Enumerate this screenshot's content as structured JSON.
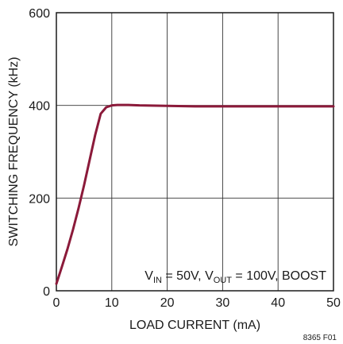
{
  "chart_data": {
    "type": "line",
    "xlabel": "LOAD CURRENT (mA)",
    "ylabel": "SWITCHING FREQUENCY (kHz)",
    "xlim": [
      0,
      50
    ],
    "ylim": [
      0,
      600
    ],
    "x_ticks": [
      "0",
      "10",
      "20",
      "30",
      "40",
      "50"
    ],
    "y_ticks": [
      "0",
      "200",
      "400",
      "600"
    ],
    "grid": true,
    "line_color": "#8b1a3a",
    "annotation": {
      "vin_label": "V",
      "vin_sub": "IN",
      "vin_text": " = 50V, V",
      "vout_sub": "OUT",
      "vout_text": " = 100V, BOOST"
    },
    "figure_id": "8365 F01",
    "series": [
      {
        "x": [
          0,
          1,
          2,
          3,
          4,
          5,
          6,
          7,
          8,
          9,
          10,
          11,
          12,
          13,
          15,
          20,
          25,
          30,
          35,
          40,
          45,
          50
        ],
        "y": [
          15,
          52,
          90,
          132,
          178,
          228,
          282,
          336,
          382,
          396,
          400,
          401,
          401,
          401,
          400,
          399,
          398,
          398,
          398,
          398,
          398,
          398
        ]
      }
    ]
  }
}
